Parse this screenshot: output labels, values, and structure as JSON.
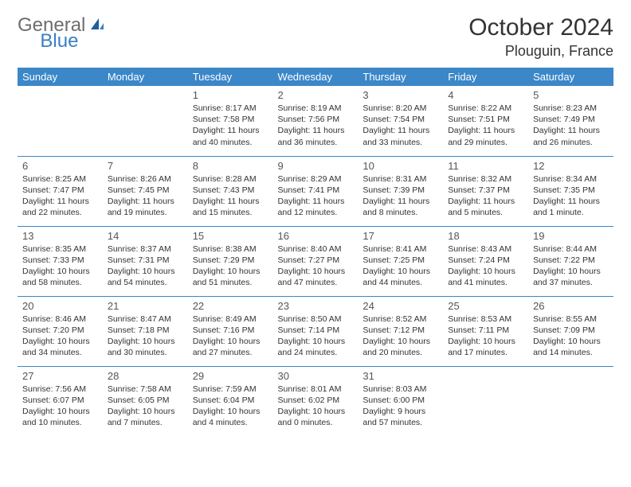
{
  "brand": {
    "general": "General",
    "blue": "Blue"
  },
  "header": {
    "month_title": "October 2024",
    "location": "Plouguin, France"
  },
  "colors": {
    "header_bg": "#3b87c8",
    "header_text": "#ffffff",
    "border": "#3b87c8",
    "body_text": "#333333",
    "logo_gray": "#6d6d6d",
    "logo_blue": "#3a7fc4",
    "background": "#ffffff"
  },
  "typography": {
    "month_title_fontsize": 30,
    "location_fontsize": 18,
    "dayhead_fontsize": 13,
    "daynum_fontsize": 13,
    "cell_fontsize": 10.5
  },
  "calendar": {
    "day_headers": [
      "Sunday",
      "Monday",
      "Tuesday",
      "Wednesday",
      "Thursday",
      "Friday",
      "Saturday"
    ],
    "weeks": [
      [
        {
          "day": "",
          "sunrise": "",
          "sunset": "",
          "daylight": ""
        },
        {
          "day": "",
          "sunrise": "",
          "sunset": "",
          "daylight": ""
        },
        {
          "day": "1",
          "sunrise": "Sunrise: 8:17 AM",
          "sunset": "Sunset: 7:58 PM",
          "daylight": "Daylight: 11 hours and 40 minutes."
        },
        {
          "day": "2",
          "sunrise": "Sunrise: 8:19 AM",
          "sunset": "Sunset: 7:56 PM",
          "daylight": "Daylight: 11 hours and 36 minutes."
        },
        {
          "day": "3",
          "sunrise": "Sunrise: 8:20 AM",
          "sunset": "Sunset: 7:54 PM",
          "daylight": "Daylight: 11 hours and 33 minutes."
        },
        {
          "day": "4",
          "sunrise": "Sunrise: 8:22 AM",
          "sunset": "Sunset: 7:51 PM",
          "daylight": "Daylight: 11 hours and 29 minutes."
        },
        {
          "day": "5",
          "sunrise": "Sunrise: 8:23 AM",
          "sunset": "Sunset: 7:49 PM",
          "daylight": "Daylight: 11 hours and 26 minutes."
        }
      ],
      [
        {
          "day": "6",
          "sunrise": "Sunrise: 8:25 AM",
          "sunset": "Sunset: 7:47 PM",
          "daylight": "Daylight: 11 hours and 22 minutes."
        },
        {
          "day": "7",
          "sunrise": "Sunrise: 8:26 AM",
          "sunset": "Sunset: 7:45 PM",
          "daylight": "Daylight: 11 hours and 19 minutes."
        },
        {
          "day": "8",
          "sunrise": "Sunrise: 8:28 AM",
          "sunset": "Sunset: 7:43 PM",
          "daylight": "Daylight: 11 hours and 15 minutes."
        },
        {
          "day": "9",
          "sunrise": "Sunrise: 8:29 AM",
          "sunset": "Sunset: 7:41 PM",
          "daylight": "Daylight: 11 hours and 12 minutes."
        },
        {
          "day": "10",
          "sunrise": "Sunrise: 8:31 AM",
          "sunset": "Sunset: 7:39 PM",
          "daylight": "Daylight: 11 hours and 8 minutes."
        },
        {
          "day": "11",
          "sunrise": "Sunrise: 8:32 AM",
          "sunset": "Sunset: 7:37 PM",
          "daylight": "Daylight: 11 hours and 5 minutes."
        },
        {
          "day": "12",
          "sunrise": "Sunrise: 8:34 AM",
          "sunset": "Sunset: 7:35 PM",
          "daylight": "Daylight: 11 hours and 1 minute."
        }
      ],
      [
        {
          "day": "13",
          "sunrise": "Sunrise: 8:35 AM",
          "sunset": "Sunset: 7:33 PM",
          "daylight": "Daylight: 10 hours and 58 minutes."
        },
        {
          "day": "14",
          "sunrise": "Sunrise: 8:37 AM",
          "sunset": "Sunset: 7:31 PM",
          "daylight": "Daylight: 10 hours and 54 minutes."
        },
        {
          "day": "15",
          "sunrise": "Sunrise: 8:38 AM",
          "sunset": "Sunset: 7:29 PM",
          "daylight": "Daylight: 10 hours and 51 minutes."
        },
        {
          "day": "16",
          "sunrise": "Sunrise: 8:40 AM",
          "sunset": "Sunset: 7:27 PM",
          "daylight": "Daylight: 10 hours and 47 minutes."
        },
        {
          "day": "17",
          "sunrise": "Sunrise: 8:41 AM",
          "sunset": "Sunset: 7:25 PM",
          "daylight": "Daylight: 10 hours and 44 minutes."
        },
        {
          "day": "18",
          "sunrise": "Sunrise: 8:43 AM",
          "sunset": "Sunset: 7:24 PM",
          "daylight": "Daylight: 10 hours and 41 minutes."
        },
        {
          "day": "19",
          "sunrise": "Sunrise: 8:44 AM",
          "sunset": "Sunset: 7:22 PM",
          "daylight": "Daylight: 10 hours and 37 minutes."
        }
      ],
      [
        {
          "day": "20",
          "sunrise": "Sunrise: 8:46 AM",
          "sunset": "Sunset: 7:20 PM",
          "daylight": "Daylight: 10 hours and 34 minutes."
        },
        {
          "day": "21",
          "sunrise": "Sunrise: 8:47 AM",
          "sunset": "Sunset: 7:18 PM",
          "daylight": "Daylight: 10 hours and 30 minutes."
        },
        {
          "day": "22",
          "sunrise": "Sunrise: 8:49 AM",
          "sunset": "Sunset: 7:16 PM",
          "daylight": "Daylight: 10 hours and 27 minutes."
        },
        {
          "day": "23",
          "sunrise": "Sunrise: 8:50 AM",
          "sunset": "Sunset: 7:14 PM",
          "daylight": "Daylight: 10 hours and 24 minutes."
        },
        {
          "day": "24",
          "sunrise": "Sunrise: 8:52 AM",
          "sunset": "Sunset: 7:12 PM",
          "daylight": "Daylight: 10 hours and 20 minutes."
        },
        {
          "day": "25",
          "sunrise": "Sunrise: 8:53 AM",
          "sunset": "Sunset: 7:11 PM",
          "daylight": "Daylight: 10 hours and 17 minutes."
        },
        {
          "day": "26",
          "sunrise": "Sunrise: 8:55 AM",
          "sunset": "Sunset: 7:09 PM",
          "daylight": "Daylight: 10 hours and 14 minutes."
        }
      ],
      [
        {
          "day": "27",
          "sunrise": "Sunrise: 7:56 AM",
          "sunset": "Sunset: 6:07 PM",
          "daylight": "Daylight: 10 hours and 10 minutes."
        },
        {
          "day": "28",
          "sunrise": "Sunrise: 7:58 AM",
          "sunset": "Sunset: 6:05 PM",
          "daylight": "Daylight: 10 hours and 7 minutes."
        },
        {
          "day": "29",
          "sunrise": "Sunrise: 7:59 AM",
          "sunset": "Sunset: 6:04 PM",
          "daylight": "Daylight: 10 hours and 4 minutes."
        },
        {
          "day": "30",
          "sunrise": "Sunrise: 8:01 AM",
          "sunset": "Sunset: 6:02 PM",
          "daylight": "Daylight: 10 hours and 0 minutes."
        },
        {
          "day": "31",
          "sunrise": "Sunrise: 8:03 AM",
          "sunset": "Sunset: 6:00 PM",
          "daylight": "Daylight: 9 hours and 57 minutes."
        },
        {
          "day": "",
          "sunrise": "",
          "sunset": "",
          "daylight": ""
        },
        {
          "day": "",
          "sunrise": "",
          "sunset": "",
          "daylight": ""
        }
      ]
    ]
  }
}
